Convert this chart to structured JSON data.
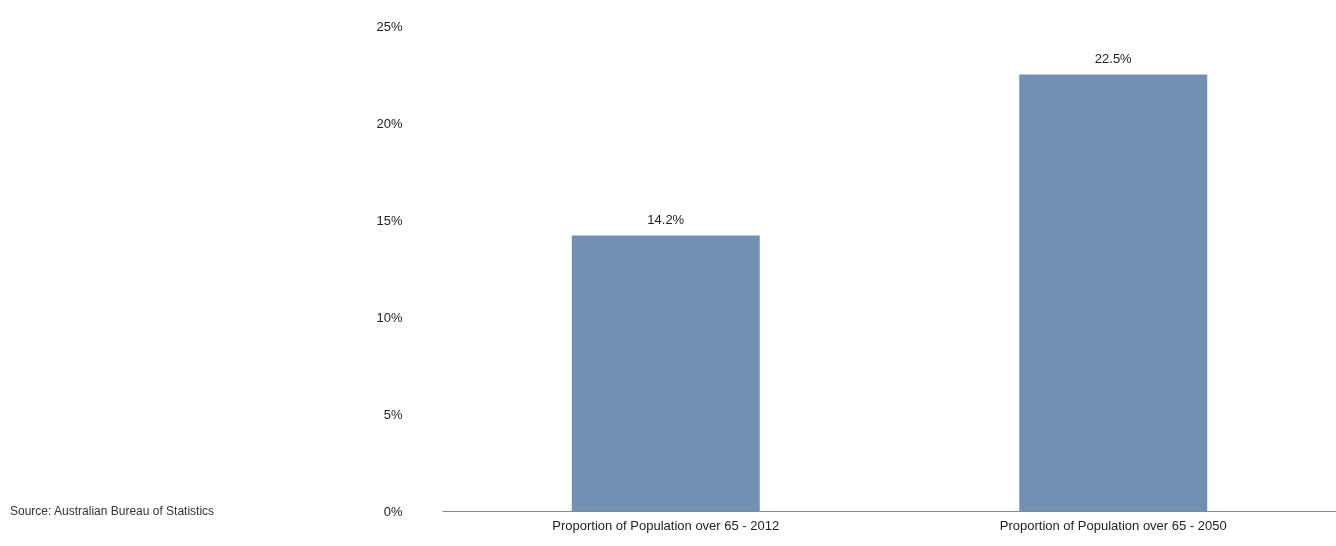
{
  "chart_data": {
    "type": "bar",
    "categories": [
      "Proportion of Population over 65 - 2012",
      "Proportion of Population over 65 - 2050"
    ],
    "values": [
      14.2,
      22.5
    ],
    "value_labels": [
      "14.2%",
      "22.5%"
    ],
    "color": "#728fb4",
    "ylim": [
      0,
      25
    ],
    "yticks": [
      {
        "value": 0,
        "label": "0%"
      },
      {
        "value": 5,
        "label": "5%"
      },
      {
        "value": 10,
        "label": "10%"
      },
      {
        "value": 15,
        "label": "15%"
      },
      {
        "value": 20,
        "label": "20%"
      },
      {
        "value": 25,
        "label": "25%"
      }
    ],
    "annotations": [
      "Source: Australian Bureau of Statistics"
    ]
  }
}
